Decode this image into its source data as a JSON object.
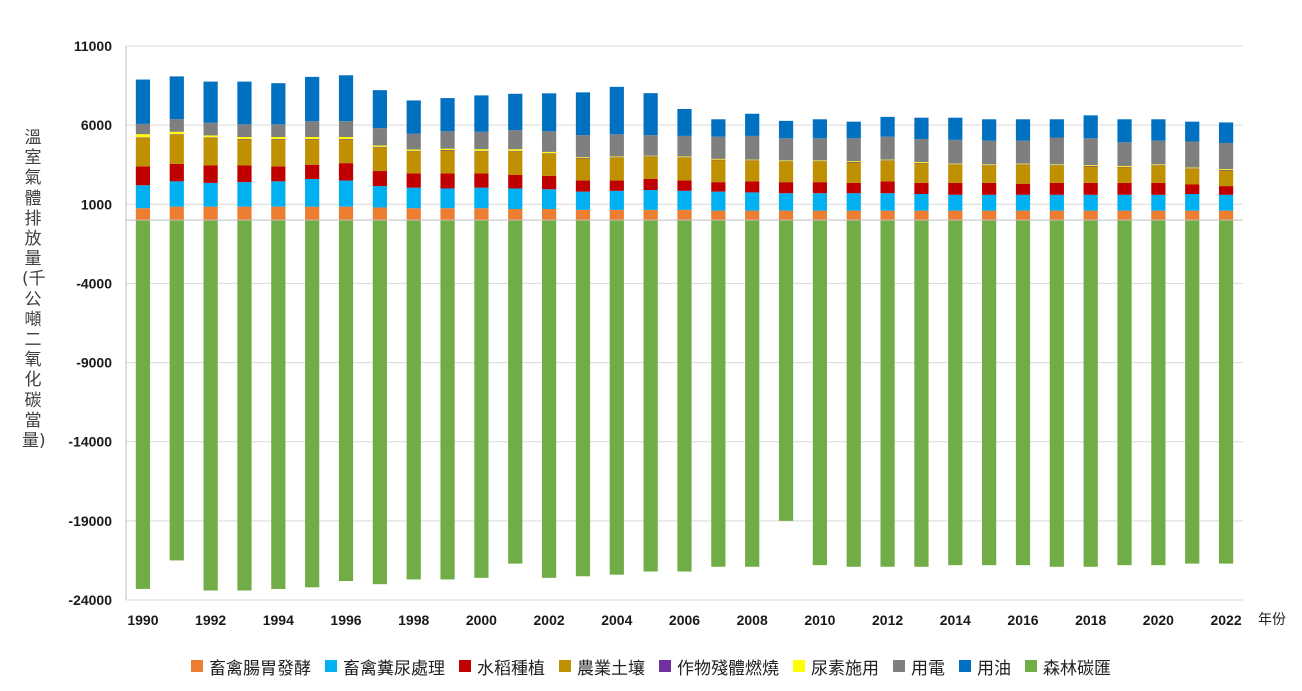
{
  "chart_data": {
    "type": "bar",
    "stacked": true,
    "title": "",
    "ylabel": "溫室氣體排放量(千公噸二氧化碳當量)",
    "xlabel_unit": "年份",
    "ylim": [
      -24000,
      11000
    ],
    "yticks": [
      "11000",
      "6000",
      "1000",
      "-4000",
      "-9000",
      "-14000",
      "-19000",
      "-24000"
    ],
    "grid": true,
    "legend_position": "bottom",
    "categories": [
      "1990",
      "1991",
      "1992",
      "1993",
      "1994",
      "1995",
      "1996",
      "1997",
      "1998",
      "1999",
      "2000",
      "2001",
      "2002",
      "2003",
      "2004",
      "2005",
      "2006",
      "2007",
      "2008",
      "2009",
      "2010",
      "2011",
      "2012",
      "2013",
      "2014",
      "2015",
      "2016",
      "2017",
      "2018",
      "2019",
      "2020",
      "2021",
      "2022"
    ],
    "x_tick_labels": [
      "1990",
      "1992",
      "1994",
      "1996",
      "1998",
      "2000",
      "2002",
      "2004",
      "2006",
      "2008",
      "2010",
      "2012",
      "2014",
      "2016",
      "2018",
      "2020",
      "2022"
    ],
    "series": [
      {
        "name": "畜禽腸胃發酵",
        "color": "#ED7D31",
        "values": [
          750,
          850,
          850,
          850,
          850,
          850,
          850,
          800,
          750,
          750,
          750,
          700,
          700,
          650,
          650,
          650,
          650,
          600,
          600,
          600,
          600,
          600,
          600,
          600,
          600,
          600,
          600,
          600,
          600,
          600,
          600,
          600,
          600
        ]
      },
      {
        "name": "畜禽糞尿處理",
        "color": "#00B0F0",
        "values": [
          1450,
          1600,
          1500,
          1550,
          1600,
          1750,
          1650,
          1350,
          1300,
          1250,
          1300,
          1300,
          1250,
          1150,
          1200,
          1250,
          1200,
          1200,
          1150,
          1100,
          1100,
          1100,
          1100,
          1050,
          1000,
          1000,
          1000,
          1000,
          1000,
          1000,
          1000,
          1050,
          1000
        ]
      },
      {
        "name": "水稻種植",
        "color": "#C00000",
        "values": [
          1200,
          1100,
          1100,
          1050,
          950,
          900,
          1100,
          950,
          900,
          950,
          900,
          850,
          850,
          700,
          650,
          700,
          650,
          600,
          700,
          700,
          700,
          650,
          750,
          700,
          750,
          750,
          700,
          750,
          750,
          750,
          750,
          600,
          550
        ]
      },
      {
        "name": "農業土壤",
        "color": "#BF9000",
        "values": [
          1800,
          1850,
          1750,
          1650,
          1700,
          1600,
          1500,
          1500,
          1400,
          1450,
          1400,
          1500,
          1400,
          1400,
          1450,
          1400,
          1450,
          1400,
          1300,
          1300,
          1300,
          1300,
          1300,
          1250,
          1150,
          1100,
          1200,
          1100,
          1050,
          1000,
          1100,
          1000,
          1000
        ]
      },
      {
        "name": "作物殘體燃燒",
        "color": "#7030A0",
        "values": [
          30,
          30,
          30,
          30,
          30,
          30,
          30,
          30,
          30,
          30,
          30,
          30,
          30,
          20,
          20,
          20,
          20,
          20,
          20,
          20,
          20,
          20,
          20,
          20,
          20,
          20,
          20,
          20,
          20,
          20,
          20,
          20,
          20
        ]
      },
      {
        "name": "尿素施用",
        "color": "#FFFF00",
        "values": [
          200,
          150,
          120,
          120,
          120,
          120,
          120,
          80,
          80,
          80,
          100,
          100,
          80,
          50,
          50,
          50,
          50,
          50,
          50,
          50,
          50,
          50,
          50,
          50,
          50,
          50,
          50,
          50,
          50,
          50,
          50,
          50,
          50
        ]
      },
      {
        "name": "用電",
        "color": "#7F7F7F",
        "values": [
          650,
          800,
          800,
          800,
          800,
          1000,
          1000,
          1100,
          1000,
          1100,
          1100,
          1200,
          1300,
          1400,
          1400,
          1300,
          1300,
          1400,
          1500,
          1400,
          1400,
          1450,
          1450,
          1450,
          1500,
          1500,
          1450,
          1700,
          1700,
          1500,
          1500,
          1650,
          1650
        ]
      },
      {
        "name": "用油",
        "color": "#0070C0",
        "values": [
          2800,
          2700,
          2600,
          2700,
          2600,
          2800,
          2900,
          2400,
          2100,
          2100,
          2300,
          2300,
          2400,
          2700,
          3000,
          2650,
          1700,
          1100,
          1400,
          1100,
          1200,
          1050,
          1250,
          1350,
          1400,
          1350,
          1350,
          1150,
          1450,
          1450,
          1350,
          1250,
          1300
        ]
      },
      {
        "name": "森林碳匯",
        "color": "#70AD47",
        "values": [
          -23300,
          -21500,
          -23400,
          -23400,
          -23300,
          -23200,
          -22800,
          -23000,
          -22700,
          -22700,
          -22600,
          -21700,
          -22600,
          -22500,
          -22400,
          -22200,
          -22200,
          -21900,
          -21900,
          -19000,
          -21800,
          -21900,
          -21900,
          -21900,
          -21800,
          -21800,
          -21800,
          -21900,
          -21900,
          -21800,
          -21800,
          -21700,
          -21700
        ]
      }
    ]
  }
}
